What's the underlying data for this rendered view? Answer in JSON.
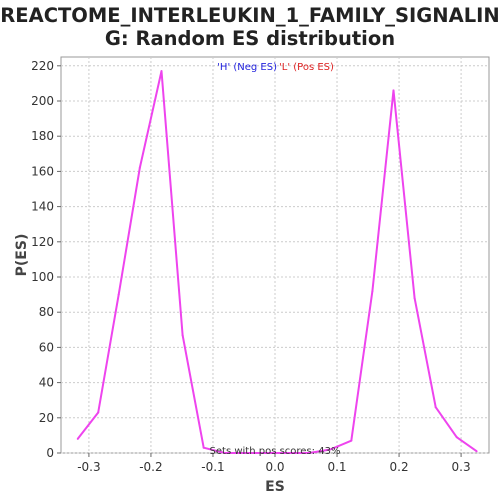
{
  "chart_data": {
    "type": "line",
    "title_lines": [
      "REACTOME_INTERLEUKIN_1_FAMILY_SIGNALIN",
      "G: Random ES distribution"
    ],
    "xlabel": "ES",
    "ylabel": "P(ES)",
    "xlim": [
      -0.345,
      0.345
    ],
    "ylim": [
      0,
      225
    ],
    "x_ticks": [
      -0.3,
      -0.2,
      -0.1,
      0.0,
      0.1,
      0.2,
      0.3
    ],
    "x_tick_labels": [
      "-0.3",
      "-0.2",
      "-0.1",
      "0.0",
      "0.1",
      "0.2",
      "0.3"
    ],
    "y_ticks": [
      0,
      20,
      40,
      60,
      80,
      100,
      120,
      140,
      160,
      180,
      200,
      220
    ],
    "y_tick_labels": [
      "0",
      "20",
      "40",
      "60",
      "80",
      "100",
      "120",
      "140",
      "160",
      "180",
      "200",
      "220"
    ],
    "grid": true,
    "legend": {
      "position": "top-center",
      "entries": [
        {
          "label": "'H' (Neg ES)",
          "color": "#2222dd"
        },
        {
          "label": "'L' (Pos ES)",
          "color": "#dd2222"
        }
      ]
    },
    "annotation": "Sets with pos scores: 43%",
    "series": [
      {
        "color": "#ee44ee",
        "x": [
          -0.318,
          -0.285,
          -0.252,
          -0.218,
          -0.183,
          -0.149,
          -0.115,
          -0.081,
          -0.047,
          -0.013,
          0.021,
          0.055,
          0.089,
          0.123,
          0.157,
          0.191,
          0.225,
          0.259,
          0.293,
          0.325
        ],
        "y": [
          8,
          23,
          90,
          162,
          217,
          67,
          3,
          0,
          0,
          0,
          0,
          0,
          2,
          7,
          92,
          206,
          88,
          26,
          9,
          1
        ]
      }
    ]
  }
}
